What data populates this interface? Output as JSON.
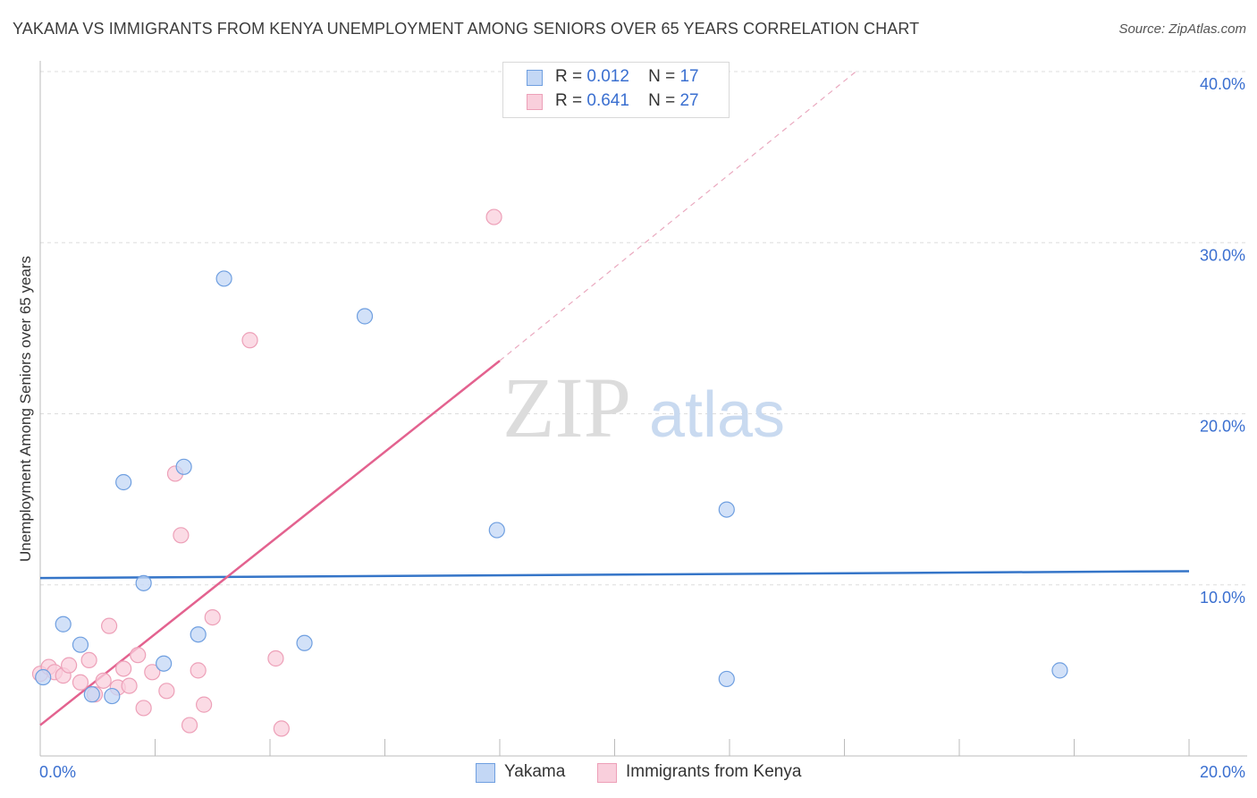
{
  "title": "YAKAMA VS IMMIGRANTS FROM KENYA UNEMPLOYMENT AMONG SENIORS OVER 65 YEARS CORRELATION CHART",
  "source": "Source: ZipAtlas.com",
  "watermark": {
    "zip": "ZIP",
    "atlas": "atlas"
  },
  "legend": {
    "r_label": "R =",
    "n_label": "N =",
    "rows": [
      {
        "r": "0.012",
        "n": "17"
      },
      {
        "r": "0.641",
        "n": "27"
      }
    ]
  },
  "colors": {
    "yakama_fill": "#c3d7f5",
    "yakama_stroke": "#6f9fe0",
    "yakama_line": "#3575c8",
    "kenya_fill": "#f9cfdc",
    "kenya_stroke": "#eda0b8",
    "kenya_line": "#e3628f",
    "tick_text": "#3a6fd0"
  },
  "chart_data": {
    "type": "scatter",
    "title": "YAKAMA VS IMMIGRANTS FROM KENYA UNEMPLOYMENT AMONG SENIORS OVER 65 YEARS CORRELATION CHART",
    "xlabel": "",
    "ylabel": "Unemployment Among Seniors over 65 years",
    "xlim": [
      0,
      20
    ],
    "ylim": [
      0,
      40
    ],
    "x_tick_labels": [
      "0.0%",
      "20.0%"
    ],
    "y_ticks": [
      {
        "value": 10,
        "label": "10.0%"
      },
      {
        "value": 20,
        "label": "20.0%"
      },
      {
        "value": 30,
        "label": "30.0%"
      },
      {
        "value": 40,
        "label": "40.0%"
      }
    ],
    "series": [
      {
        "name": "Yakama",
        "points": [
          [
            0.05,
            4.6
          ],
          [
            0.4,
            7.7
          ],
          [
            0.7,
            6.5
          ],
          [
            0.9,
            3.6
          ],
          [
            1.25,
            3.5
          ],
          [
            1.45,
            16.0
          ],
          [
            1.8,
            10.1
          ],
          [
            2.15,
            5.4
          ],
          [
            2.5,
            16.9
          ],
          [
            2.75,
            7.1
          ],
          [
            3.2,
            27.9
          ],
          [
            4.6,
            6.6
          ],
          [
            5.65,
            25.7
          ],
          [
            7.95,
            13.2
          ],
          [
            11.95,
            14.4
          ],
          [
            11.95,
            4.5
          ],
          [
            17.75,
            5.0
          ]
        ],
        "trend": {
          "x": [
            0,
            20
          ],
          "y": [
            10.4,
            10.8
          ]
        }
      },
      {
        "name": "Immigrants from Kenya",
        "points": [
          [
            0.0,
            4.8
          ],
          [
            0.15,
            5.2
          ],
          [
            0.25,
            4.9
          ],
          [
            0.4,
            4.7
          ],
          [
            0.5,
            5.3
          ],
          [
            0.7,
            4.3
          ],
          [
            0.85,
            5.6
          ],
          [
            0.95,
            3.6
          ],
          [
            1.1,
            4.4
          ],
          [
            1.2,
            7.6
          ],
          [
            1.35,
            4.0
          ],
          [
            1.45,
            5.1
          ],
          [
            1.55,
            4.1
          ],
          [
            1.7,
            5.9
          ],
          [
            1.8,
            2.8
          ],
          [
            1.95,
            4.9
          ],
          [
            2.2,
            3.8
          ],
          [
            2.35,
            16.5
          ],
          [
            2.45,
            12.9
          ],
          [
            2.6,
            1.8
          ],
          [
            2.75,
            5.0
          ],
          [
            2.85,
            3.0
          ],
          [
            3.0,
            8.1
          ],
          [
            3.65,
            24.3
          ],
          [
            4.1,
            5.7
          ],
          [
            4.2,
            1.6
          ],
          [
            7.9,
            31.5
          ]
        ],
        "trend": {
          "x": [
            0,
            8.0
          ],
          "y": [
            1.8,
            23.1
          ]
        },
        "trend_extension": {
          "x": [
            8.0,
            14.2
          ],
          "y": [
            23.1,
            40.0
          ]
        }
      }
    ]
  },
  "bottom_legend": [
    "Yakama",
    "Immigrants from Kenya"
  ]
}
